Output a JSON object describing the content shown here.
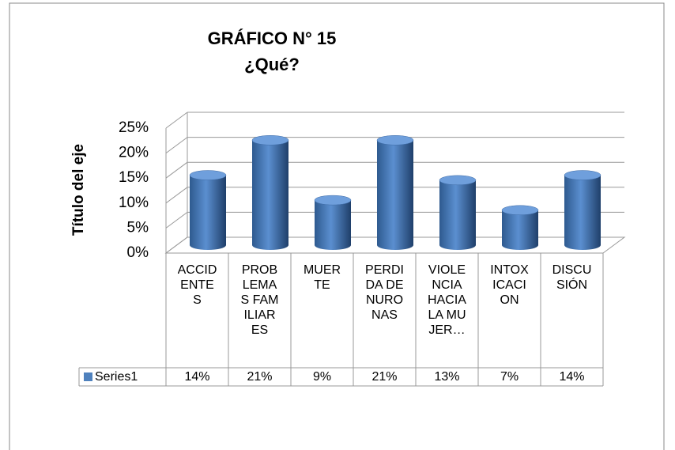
{
  "chart_data": {
    "type": "bar",
    "title": "GRÁFICO N° 15",
    "subtitle": "¿Qué?",
    "y_label": "Título del eje",
    "categories": [
      "ACCIDENTES",
      "PROBLEMAS FAMILIARES",
      "MUERTE",
      "PERDIDA DE NURONAS",
      "VIOLENCIA HACIA LA MUJER…",
      "INTOXICACION",
      "DISCUSIÓN"
    ],
    "series": [
      {
        "name": "Series1",
        "color": "#4f81bd",
        "values": [
          14,
          21,
          9,
          21,
          13,
          7,
          14
        ],
        "value_labels": [
          "14%",
          "21%",
          "9%",
          "21%",
          "13%",
          "7%",
          "14%"
        ]
      }
    ],
    "ylim": [
      0,
      25
    ],
    "yticks": [
      {
        "value": 0,
        "label": "0%"
      },
      {
        "value": 5,
        "label": "5%"
      },
      {
        "value": 10,
        "label": "10%"
      },
      {
        "value": 15,
        "label": "15%"
      },
      {
        "value": 20,
        "label": "20%"
      },
      {
        "value": 25,
        "label": "25%"
      }
    ],
    "grid": true
  }
}
